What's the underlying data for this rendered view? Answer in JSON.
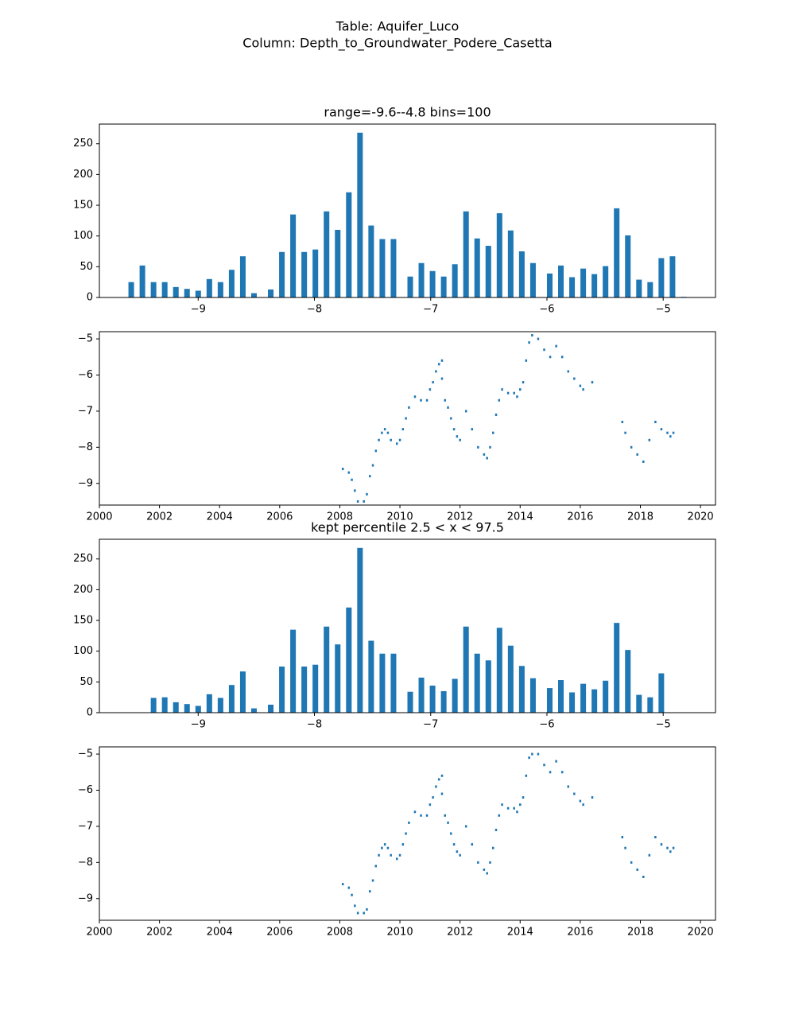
{
  "title": [
    "Table: Aquifer_Luco",
    "Column: Depth_to_Groundwater_Podere_Casetta"
  ],
  "chart_data": [
    {
      "type": "histogram",
      "title": "range=-9.6--4.8 bins=100",
      "color": "#1f77b4",
      "bins": [
        -9.6,
        -9.552,
        -9.504,
        -9.456,
        -9.408,
        -9.36,
        -9.312,
        -9.264,
        -9.216,
        -9.168,
        -9.12,
        -9.072,
        -9.024,
        -8.976,
        -8.928,
        -8.88,
        -8.832,
        -8.784,
        -8.736,
        -8.688,
        -8.64,
        -8.592,
        -8.544,
        -8.496,
        -8.448,
        -8.4,
        -8.352,
        -8.304,
        -8.256,
        -8.208,
        -8.16,
        -8.112,
        -8.064,
        -8.016,
        -7.968,
        -7.92,
        -7.872,
        -7.824,
        -7.776,
        -7.728,
        -7.68,
        -7.632,
        -7.584,
        -7.536,
        -7.488,
        -7.44,
        -7.392,
        -7.344,
        -7.296,
        -7.248,
        -7.2,
        -7.152,
        -7.104,
        -7.056,
        -7.008,
        -6.96,
        -6.912,
        -6.864,
        -6.816,
        -6.768,
        -6.72,
        -6.672,
        -6.624,
        -6.576,
        -6.528,
        -6.48,
        -6.432,
        -6.384,
        -6.336,
        -6.288,
        -6.24,
        -6.192,
        -6.144,
        -6.096,
        -6.048,
        -6.0,
        -5.952,
        -5.904,
        -5.856,
        -5.808,
        -5.76,
        -5.712,
        -5.664,
        -5.616,
        -5.568,
        -5.52,
        -5.472,
        -5.424,
        -5.376,
        -5.328,
        -5.28,
        -5.232,
        -5.184,
        -5.136,
        -5.088,
        -5.04,
        -4.992,
        -4.944,
        -4.896,
        -4.848,
        -4.8
      ],
      "values": [
        25,
        0,
        52,
        0,
        25,
        0,
        25,
        0,
        17,
        0,
        14,
        0,
        11,
        0,
        30,
        0,
        25,
        0,
        45,
        0,
        67,
        0,
        7,
        0,
        0,
        13,
        0,
        74,
        0,
        135,
        0,
        74,
        0,
        78,
        0,
        140,
        0,
        110,
        0,
        171,
        0,
        268,
        0,
        117,
        0,
        95,
        0,
        95,
        0,
        0,
        34,
        0,
        56,
        0,
        43,
        0,
        34,
        0,
        54,
        0,
        140,
        0,
        96,
        0,
        84,
        0,
        137,
        0,
        109,
        0,
        75,
        0,
        56,
        0,
        0,
        39,
        0,
        52,
        0,
        33,
        0,
        47,
        0,
        38,
        0,
        51,
        0,
        145,
        0,
        101,
        0,
        29,
        0,
        25,
        0,
        64,
        0,
        67,
        0,
        1
      ],
      "xlim": [
        -9.85,
        -4.55
      ],
      "ylim": [
        0,
        282
      ],
      "xticks": [
        {
          "value": -9,
          "label": "−9"
        },
        {
          "value": -8,
          "label": "−8"
        },
        {
          "value": -7,
          "label": "−7"
        },
        {
          "value": -6,
          "label": "−6"
        },
        {
          "value": -5,
          "label": "−5"
        }
      ],
      "yticks": [
        0,
        50,
        100,
        150,
        200,
        250
      ]
    },
    {
      "type": "scatter",
      "color": "#1f77b4",
      "x": [
        2008.1,
        2008.3,
        2008.4,
        2008.5,
        2008.6,
        2008.8,
        2008.9,
        2009.0,
        2009.1,
        2009.2,
        2009.3,
        2009.4,
        2009.5,
        2009.6,
        2009.7,
        2009.9,
        2010.0,
        2010.1,
        2010.2,
        2010.3,
        2010.5,
        2010.7,
        2010.9,
        2011.0,
        2011.1,
        2011.2,
        2011.3,
        2011.4,
        2011.4,
        2011.5,
        2011.6,
        2011.7,
        2011.8,
        2011.9,
        2012.0,
        2012.2,
        2012.4,
        2012.6,
        2012.8,
        2012.9,
        2013.0,
        2013.1,
        2013.2,
        2013.3,
        2013.4,
        2013.6,
        2013.8,
        2013.9,
        2014.0,
        2014.1,
        2014.2,
        2014.3,
        2014.4,
        2014.6,
        2014.8,
        2015.0,
        2015.2,
        2015.4,
        2015.6,
        2015.8,
        2016.0,
        2016.1,
        2016.4,
        2017.4,
        2017.5,
        2017.7,
        2017.9,
        2018.1,
        2018.3,
        2018.5,
        2018.7,
        2018.9,
        2019.0,
        2019.1
      ],
      "values": [
        -8.6,
        -8.7,
        -8.9,
        -9.2,
        -9.5,
        -9.5,
        -9.3,
        -8.8,
        -8.5,
        -8.1,
        -7.8,
        -7.6,
        -7.5,
        -7.6,
        -7.8,
        -7.9,
        -7.8,
        -7.5,
        -7.2,
        -6.9,
        -6.6,
        -6.7,
        -6.7,
        -6.4,
        -6.2,
        -5.9,
        -5.7,
        -5.6,
        -6.1,
        -6.7,
        -6.9,
        -7.2,
        -7.5,
        -7.7,
        -7.8,
        -7.0,
        -7.5,
        -8.0,
        -8.2,
        -8.3,
        -8.0,
        -7.6,
        -7.1,
        -6.7,
        -6.4,
        -6.5,
        -6.5,
        -6.6,
        -6.4,
        -6.2,
        -5.6,
        -5.1,
        -4.9,
        -5.0,
        -5.3,
        -5.5,
        -5.2,
        -5.5,
        -5.9,
        -6.1,
        -6.3,
        -6.4,
        -6.2,
        -7.3,
        -7.6,
        -8.0,
        -8.2,
        -8.4,
        -7.8,
        -7.3,
        -7.5,
        -7.6,
        -7.7,
        -7.6
      ],
      "xlim": [
        2000,
        2020.5
      ],
      "ylim": [
        -9.6,
        -4.8
      ],
      "xticks": [
        2000,
        2002,
        2004,
        2006,
        2008,
        2010,
        2012,
        2014,
        2016,
        2018,
        2020
      ],
      "yticks": [
        {
          "value": -9,
          "label": "−9"
        },
        {
          "value": -8,
          "label": "−8"
        },
        {
          "value": -7,
          "label": "−7"
        },
        {
          "value": -6,
          "label": "−6"
        },
        {
          "value": -5,
          "label": "−5"
        }
      ]
    },
    {
      "type": "histogram",
      "title": "kept percentile 2.5 < x < 97.5",
      "color": "#1f77b4",
      "bins": [
        -9.6,
        -9.552,
        -9.504,
        -9.456,
        -9.408,
        -9.36,
        -9.312,
        -9.264,
        -9.216,
        -9.168,
        -9.12,
        -9.072,
        -9.024,
        -8.976,
        -8.928,
        -8.88,
        -8.832,
        -8.784,
        -8.736,
        -8.688,
        -8.64,
        -8.592,
        -8.544,
        -8.496,
        -8.448,
        -8.4,
        -8.352,
        -8.304,
        -8.256,
        -8.208,
        -8.16,
        -8.112,
        -8.064,
        -8.016,
        -7.968,
        -7.92,
        -7.872,
        -7.824,
        -7.776,
        -7.728,
        -7.68,
        -7.632,
        -7.584,
        -7.536,
        -7.488,
        -7.44,
        -7.392,
        -7.344,
        -7.296,
        -7.248,
        -7.2,
        -7.152,
        -7.104,
        -7.056,
        -7.008,
        -6.96,
        -6.912,
        -6.864,
        -6.816,
        -6.768,
        -6.72,
        -6.672,
        -6.624,
        -6.576,
        -6.528,
        -6.48,
        -6.432,
        -6.384,
        -6.336,
        -6.288,
        -6.24,
        -6.192,
        -6.144,
        -6.096,
        -6.048,
        -6.0,
        -5.952,
        -5.904,
        -5.856,
        -5.808,
        -5.76,
        -5.712,
        -5.664,
        -5.616,
        -5.568,
        -5.52,
        -5.472,
        -5.424,
        -5.376,
        -5.328,
        -5.28,
        -5.232,
        -5.184,
        -5.136,
        -5.088,
        -5.04,
        -4.992,
        -4.944,
        -4.896,
        -4.848,
        -4.8
      ],
      "values": [
        0,
        0,
        0,
        0,
        24,
        0,
        25,
        0,
        17,
        0,
        14,
        0,
        11,
        0,
        30,
        0,
        24,
        0,
        45,
        0,
        67,
        0,
        7,
        0,
        0,
        13,
        0,
        75,
        0,
        135,
        0,
        75,
        0,
        78,
        0,
        140,
        0,
        111,
        0,
        171,
        0,
        268,
        0,
        117,
        0,
        96,
        0,
        96,
        0,
        0,
        34,
        0,
        57,
        0,
        44,
        0,
        35,
        0,
        55,
        0,
        140,
        0,
        96,
        0,
        85,
        0,
        138,
        0,
        109,
        0,
        76,
        0,
        56,
        0,
        0,
        40,
        0,
        53,
        0,
        33,
        0,
        47,
        0,
        38,
        0,
        52,
        0,
        146,
        0,
        102,
        0,
        29,
        0,
        25,
        0,
        64,
        0,
        0,
        0,
        0
      ],
      "xlim": [
        -9.85,
        -4.55
      ],
      "ylim": [
        0,
        282
      ],
      "xticks": [
        {
          "value": -9,
          "label": "−9"
        },
        {
          "value": -8,
          "label": "−8"
        },
        {
          "value": -7,
          "label": "−7"
        },
        {
          "value": -6,
          "label": "−6"
        },
        {
          "value": -5,
          "label": "−5"
        }
      ],
      "yticks": [
        0,
        50,
        100,
        150,
        200,
        250
      ]
    },
    {
      "type": "scatter",
      "color": "#1f77b4",
      "x": [
        2008.1,
        2008.3,
        2008.4,
        2008.5,
        2008.6,
        2008.8,
        2008.9,
        2009.0,
        2009.1,
        2009.2,
        2009.3,
        2009.4,
        2009.5,
        2009.6,
        2009.7,
        2009.9,
        2010.0,
        2010.1,
        2010.2,
        2010.3,
        2010.5,
        2010.7,
        2010.9,
        2011.0,
        2011.1,
        2011.2,
        2011.3,
        2011.4,
        2011.4,
        2011.5,
        2011.6,
        2011.7,
        2011.8,
        2011.9,
        2012.0,
        2012.2,
        2012.4,
        2012.6,
        2012.8,
        2012.9,
        2013.0,
        2013.1,
        2013.2,
        2013.3,
        2013.4,
        2013.6,
        2013.8,
        2013.9,
        2014.0,
        2014.1,
        2014.2,
        2014.3,
        2014.4,
        2014.6,
        2014.8,
        2015.0,
        2015.2,
        2015.4,
        2015.6,
        2015.8,
        2016.0,
        2016.1,
        2016.4,
        2017.4,
        2017.5,
        2017.7,
        2017.9,
        2018.1,
        2018.3,
        2018.5,
        2018.7,
        2018.9,
        2019.0,
        2019.1
      ],
      "values": [
        -8.6,
        -8.7,
        -8.9,
        -9.2,
        -9.4,
        -9.4,
        -9.3,
        -8.8,
        -8.5,
        -8.1,
        -7.8,
        -7.6,
        -7.5,
        -7.6,
        -7.8,
        -7.9,
        -7.8,
        -7.5,
        -7.2,
        -6.9,
        -6.6,
        -6.7,
        -6.7,
        -6.4,
        -6.2,
        -5.9,
        -5.7,
        -5.6,
        -6.1,
        -6.7,
        -6.9,
        -7.2,
        -7.5,
        -7.7,
        -7.8,
        -7.0,
        -7.5,
        -8.0,
        -8.2,
        -8.3,
        -8.0,
        -7.6,
        -7.1,
        -6.7,
        -6.4,
        -6.5,
        -6.5,
        -6.6,
        -6.4,
        -6.2,
        -5.6,
        -5.1,
        -5.0,
        -5.0,
        -5.3,
        -5.5,
        -5.2,
        -5.5,
        -5.9,
        -6.1,
        -6.3,
        -6.4,
        -6.2,
        -7.3,
        -7.6,
        -8.0,
        -8.2,
        -8.4,
        -7.8,
        -7.3,
        -7.5,
        -7.6,
        -7.7,
        -7.6
      ],
      "xlim": [
        2000,
        2020.5
      ],
      "ylim": [
        -9.6,
        -4.8
      ],
      "xticks": [
        2000,
        2002,
        2004,
        2006,
        2008,
        2010,
        2012,
        2014,
        2016,
        2018,
        2020
      ],
      "yticks": [
        {
          "value": -9,
          "label": "−9"
        },
        {
          "value": -8,
          "label": "−8"
        },
        {
          "value": -7,
          "label": "−7"
        },
        {
          "value": -6,
          "label": "−6"
        },
        {
          "value": -5,
          "label": "−5"
        }
      ]
    }
  ]
}
